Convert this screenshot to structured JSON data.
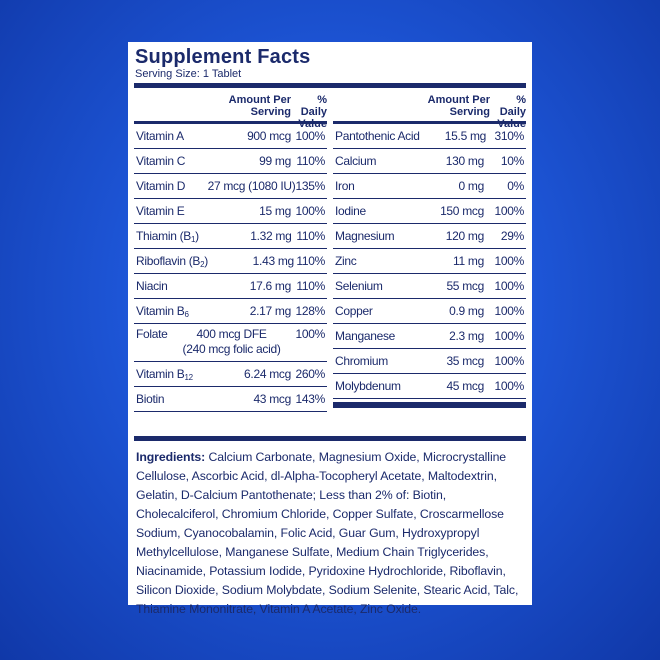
{
  "title": "Supplement Facts",
  "serving": "Serving Size: 1 Tablet",
  "header": {
    "amount": "Amount Per Serving",
    "dv": "% Daily Value"
  },
  "left": [
    {
      "name": "Vitamin A",
      "sub": "",
      "amt": "900 mcg",
      "dv": "100%"
    },
    {
      "name": "Vitamin C",
      "sub": "",
      "amt": "99 mg",
      "dv": "110%"
    },
    {
      "name": "Vitamin D",
      "sub": "",
      "amt": "27 mcg (1080 IU)",
      "dv": "135%"
    },
    {
      "name": "Vitamin E",
      "sub": "",
      "amt": "15 mg",
      "dv": "100%"
    },
    {
      "name": "Thiamin (B",
      "sub": "1",
      "after": ")",
      "amt": "1.32 mg",
      "dv": "110%"
    },
    {
      "name": "Riboflavin (B",
      "sub": "2",
      "after": ")",
      "amt": "1.43 mg",
      "dv": "110%"
    },
    {
      "name": "Niacin",
      "sub": "",
      "amt": "17.6 mg",
      "dv": "110%"
    },
    {
      "name": "Vitamin B",
      "sub": "6",
      "amt": "2.17 mg",
      "dv": "128%"
    },
    {
      "name": "Folate",
      "sub": "",
      "amt": "400 mcg DFE",
      "amt2": "(240 mcg folic acid)",
      "dv": "100%"
    },
    {
      "name": "Vitamin B",
      "sub": "12",
      "amt": "6.24 mcg",
      "dv": "260%"
    },
    {
      "name": "Biotin",
      "sub": "",
      "amt": "43 mcg",
      "dv": "143%"
    }
  ],
  "right": [
    {
      "name": "Pantothenic Acid",
      "amt": "15.5 mg",
      "dv": "310%"
    },
    {
      "name": "Calcium",
      "amt": "130 mg",
      "dv": "10%"
    },
    {
      "name": "Iron",
      "amt": "0 mg",
      "dv": "0%"
    },
    {
      "name": "Iodine",
      "amt": "150 mcg",
      "dv": "100%"
    },
    {
      "name": "Magnesium",
      "amt": "120 mg",
      "dv": "29%"
    },
    {
      "name": "Zinc",
      "amt": "11 mg",
      "dv": "100%"
    },
    {
      "name": "Selenium",
      "amt": "55 mcg",
      "dv": "100%"
    },
    {
      "name": "Copper",
      "amt": "0.9 mg",
      "dv": "100%"
    },
    {
      "name": "Manganese",
      "amt": "2.3 mg",
      "dv": "100%"
    },
    {
      "name": "Chromium",
      "amt": "35 mcg",
      "dv": "100%"
    },
    {
      "name": "Molybdenum",
      "amt": "45 mcg",
      "dv": "100%"
    }
  ],
  "ingredients_label": "Ingredients:",
  "ingredients_text": "Calcium Carbonate, Magnesium Oxide, Microcrystalline Cellulose, Ascorbic Acid, dl-Alpha-Tocopheryl Acetate, Maltodextrin, Gelatin, D-Calcium Pantothenate;  Less than 2% of: Biotin, Cholecalciferol, Chromium Chloride, Copper Sulfate, Croscarmellose Sodium, Cyanocobalamin, Folic Acid, Guar Gum, Hydroxypropyl Methylcellulose, Manganese Sulfate, Medium Chain Triglycerides, Niacinamide, Potassium Iodide, Pyridoxine Hydrochloride, Riboflavin, Silicon Dioxide, Sodium Molybdate, Sodium Selenite, Stearic Acid, Talc, Thiamine Mononitrate, Vitamin A Acetate, Zinc Oxide."
}
